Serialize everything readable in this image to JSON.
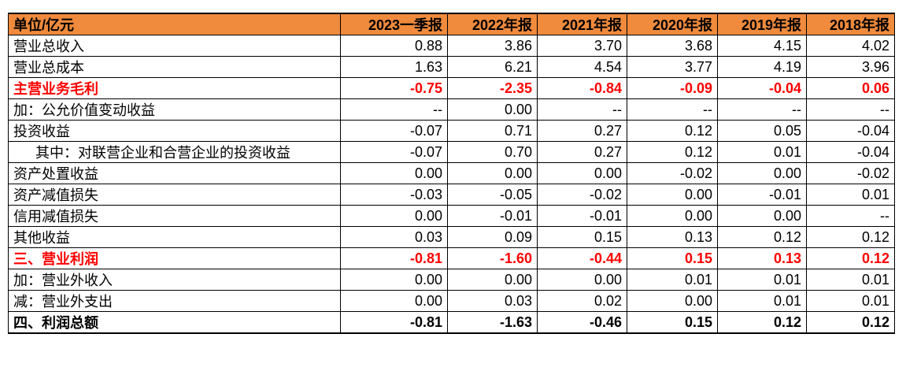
{
  "header": {
    "unit_label": "单位/亿元",
    "periods": [
      "2023一季报",
      "2022年报",
      "2021年报",
      "2020年报",
      "2019年报",
      "2018年报"
    ]
  },
  "rows": [
    {
      "label": "营业总收入",
      "values": [
        "0.88",
        "3.86",
        "3.70",
        "3.68",
        "4.15",
        "4.02"
      ],
      "style": "normal"
    },
    {
      "label": "营业总成本",
      "values": [
        "1.63",
        "6.21",
        "4.54",
        "3.77",
        "4.19",
        "3.96"
      ],
      "style": "normal"
    },
    {
      "label": "主营业务毛利",
      "values": [
        "-0.75",
        "-2.35",
        "-0.84",
        "-0.09",
        "-0.04",
        "0.06"
      ],
      "style": "red"
    },
    {
      "label": "加：公允价值变动收益",
      "values": [
        "--",
        "0.00",
        "--",
        "--",
        "--",
        "--"
      ],
      "style": "normal"
    },
    {
      "label": "投资收益",
      "values": [
        "-0.07",
        "0.71",
        "0.27",
        "0.12",
        "0.05",
        "-0.04"
      ],
      "style": "normal"
    },
    {
      "label": "其中：对联营企业和合营企业的投资收益",
      "values": [
        "-0.07",
        "0.70",
        "0.27",
        "0.12",
        "0.01",
        "-0.04"
      ],
      "style": "indent"
    },
    {
      "label": "资产处置收益",
      "values": [
        "0.00",
        "0.00",
        "0.00",
        "-0.02",
        "0.00",
        "-0.02"
      ],
      "style": "normal"
    },
    {
      "label": "资产减值损失",
      "values": [
        "-0.03",
        "-0.05",
        "-0.02",
        "0.00",
        "-0.01",
        "0.01"
      ],
      "style": "normal"
    },
    {
      "label": "信用减值损失",
      "values": [
        "0.00",
        "-0.01",
        "-0.01",
        "0.00",
        "0.00",
        "--"
      ],
      "style": "normal"
    },
    {
      "label": "其他收益",
      "values": [
        "0.03",
        "0.09",
        "0.15",
        "0.13",
        "0.12",
        "0.12"
      ],
      "style": "normal"
    },
    {
      "label": "三、营业利润",
      "values": [
        "-0.81",
        "-1.60",
        "-0.44",
        "0.15",
        "0.13",
        "0.12"
      ],
      "style": "red"
    },
    {
      "label": "加：营业外收入",
      "values": [
        "0.00",
        "0.00",
        "0.00",
        "0.01",
        "0.01",
        "0.01"
      ],
      "style": "normal"
    },
    {
      "label": "减：营业外支出",
      "values": [
        "0.00",
        "0.03",
        "0.02",
        "0.00",
        "0.01",
        "0.01"
      ],
      "style": "normal"
    },
    {
      "label": "四、利润总额",
      "values": [
        "-0.81",
        "-1.63",
        "-0.46",
        "0.15",
        "0.12",
        "0.12"
      ],
      "style": "bold"
    }
  ],
  "colors": {
    "header_bg": "#f08a3c",
    "highlight_text": "#ff0000",
    "border": "#000000"
  }
}
